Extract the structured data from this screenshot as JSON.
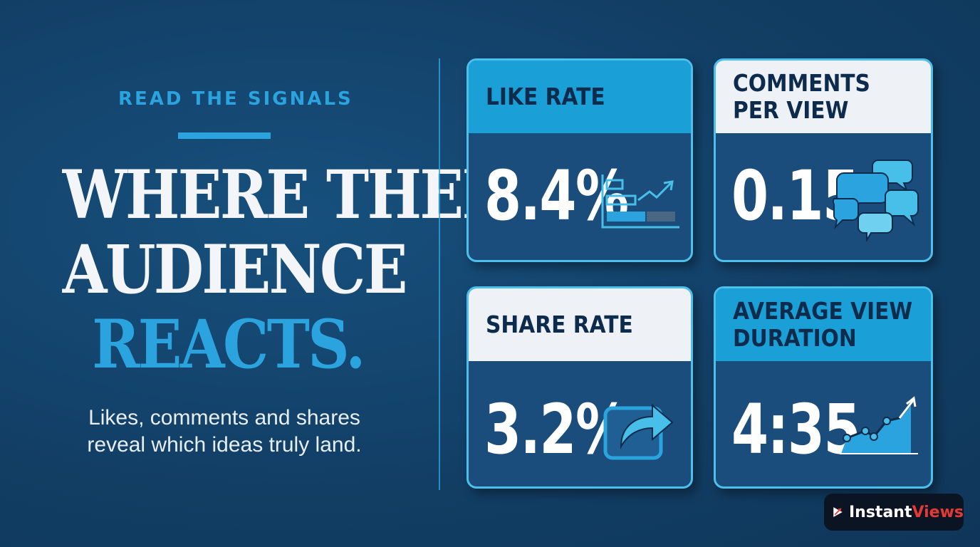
{
  "eyebrow": "READ THE SIGNALS",
  "headline": {
    "line1": "WHERE THEIR",
    "line2": "AUDIENCE",
    "line3": "REACTS."
  },
  "subtext": {
    "line1": "Likes, comments and shares",
    "line2": "reveal which ideas truly land."
  },
  "cards": [
    {
      "title_line1": "LIKE RATE",
      "title_line2": "",
      "value": "8.4%",
      "icon": "bar-chart-trend-icon"
    },
    {
      "title_line1": "COMMENTS",
      "title_line2": "PER VIEW",
      "value": "0.15",
      "icon": "chat-bubbles-icon"
    },
    {
      "title_line1": "SHARE RATE",
      "title_line2": "",
      "value": "3.2%",
      "icon": "share-arrow-icon"
    },
    {
      "title_line1": "AVERAGE VIEW",
      "title_line2": "DURATION",
      "value": "4:35",
      "icon": "line-chart-up-icon"
    }
  ],
  "logo": {
    "brand_part1": "Instant",
    "brand_part2": "Views"
  },
  "colors": {
    "background": "#123f66",
    "accent": "#2aa3df",
    "card_border": "#4cc0eb",
    "header_blue": "#1aa0d6",
    "header_white": "#eef2f7",
    "brand_red": "#e53935"
  }
}
